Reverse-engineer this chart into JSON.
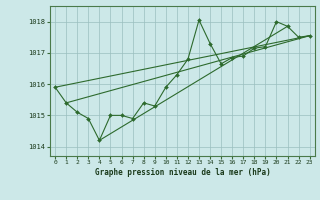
{
  "title": "Graphe pression niveau de la mer (hPa)",
  "background_color": "#cce8e8",
  "line_color": "#2d6a2d",
  "grid_color": "#9bbfbf",
  "xlim": [
    -0.5,
    23.5
  ],
  "ylim": [
    1013.7,
    1018.5
  ],
  "yticks": [
    1014,
    1015,
    1016,
    1017,
    1018
  ],
  "xticks": [
    0,
    1,
    2,
    3,
    4,
    5,
    6,
    7,
    8,
    9,
    10,
    11,
    12,
    13,
    14,
    15,
    16,
    17,
    18,
    19,
    20,
    21,
    22,
    23
  ],
  "main_x": [
    0,
    1,
    2,
    3,
    4,
    5,
    6,
    7,
    8,
    9,
    10,
    11,
    12,
    13,
    14,
    15,
    16,
    17,
    18,
    19,
    20,
    21,
    22,
    23
  ],
  "main_y": [
    1015.9,
    1015.4,
    1015.1,
    1014.9,
    1014.2,
    1015.0,
    1015.0,
    1014.9,
    1015.4,
    1015.3,
    1015.9,
    1016.3,
    1016.8,
    1018.05,
    1017.3,
    1016.65,
    1016.85,
    1016.9,
    1017.15,
    1017.2,
    1018.0,
    1017.85,
    1017.5,
    1017.55
  ],
  "trend1_x": [
    0,
    23
  ],
  "trend1_y": [
    1015.9,
    1017.55
  ],
  "trend2_x": [
    1,
    23
  ],
  "trend2_y": [
    1015.4,
    1017.55
  ],
  "trend3_x": [
    4,
    21
  ],
  "trend3_y": [
    1014.2,
    1017.85
  ]
}
